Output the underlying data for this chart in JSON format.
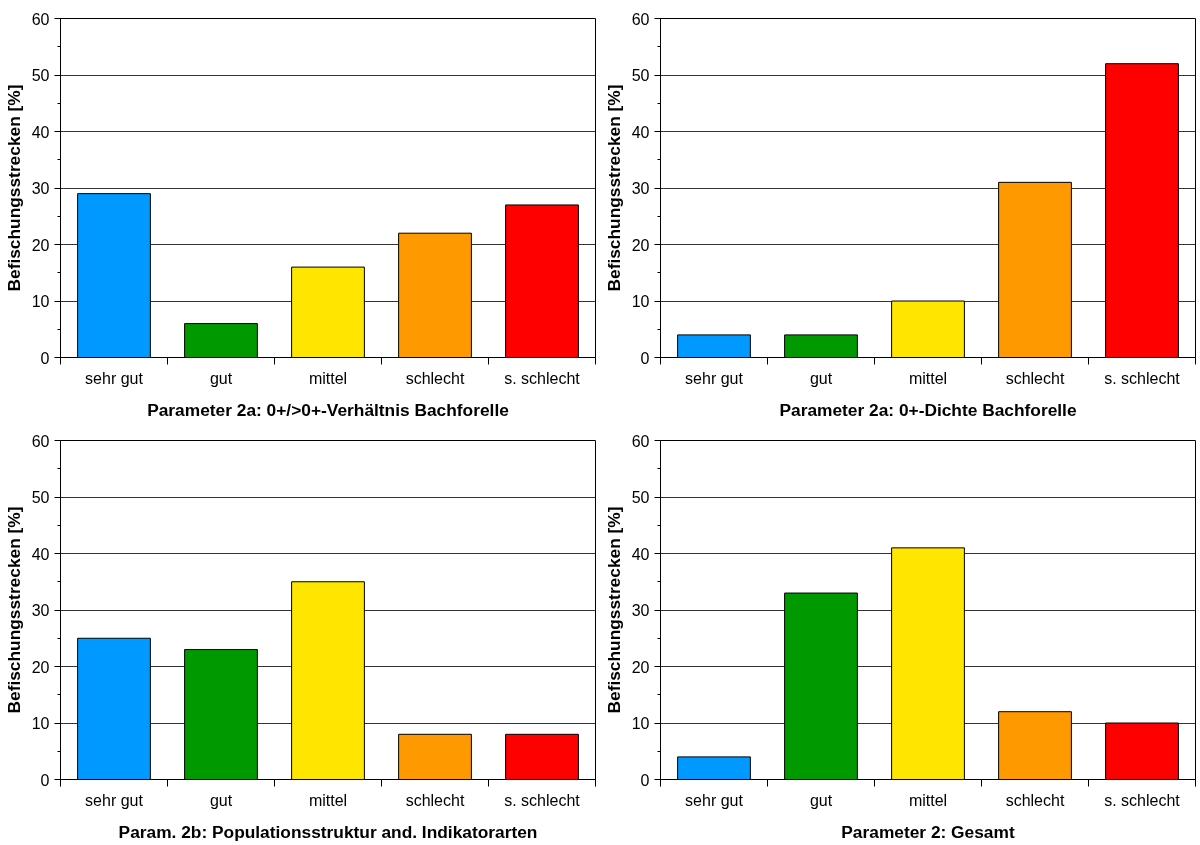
{
  "chart_data": [
    {
      "type": "bar",
      "xlabel": "Parameter 2a: 0+/>0+-Verhältnis Bachforelle",
      "ylabel": "Befischungsstrecken [%]",
      "categories": [
        "sehr gut",
        "gut",
        "mittel",
        "schlecht",
        "s. schlecht"
      ],
      "values": [
        29,
        6,
        16,
        22,
        27
      ],
      "colors": [
        "#0099ff",
        "#009900",
        "#ffe600",
        "#ff9900",
        "#ff0000"
      ],
      "ylim": [
        0,
        60
      ],
      "yticks": [
        0,
        10,
        20,
        30,
        40,
        50,
        60
      ],
      "grid": "y"
    },
    {
      "type": "bar",
      "xlabel": "Parameter 2a: 0+-Dichte Bachforelle",
      "ylabel": "Befischungsstrecken [%]",
      "categories": [
        "sehr gut",
        "gut",
        "mittel",
        "schlecht",
        "s. schlecht"
      ],
      "values": [
        4,
        4,
        10,
        31,
        52
      ],
      "colors": [
        "#0099ff",
        "#009900",
        "#ffe600",
        "#ff9900",
        "#ff0000"
      ],
      "ylim": [
        0,
        60
      ],
      "yticks": [
        0,
        10,
        20,
        30,
        40,
        50,
        60
      ],
      "grid": "y"
    },
    {
      "type": "bar",
      "xlabel": "Param. 2b: Populationsstruktur and. Indikatorarten",
      "ylabel": "Befischungsstrecken [%]",
      "categories": [
        "sehr gut",
        "gut",
        "mittel",
        "schlecht",
        "s. schlecht"
      ],
      "values": [
        25,
        23,
        35,
        8,
        8
      ],
      "colors": [
        "#0099ff",
        "#009900",
        "#ffe600",
        "#ff9900",
        "#ff0000"
      ],
      "ylim": [
        0,
        60
      ],
      "yticks": [
        0,
        10,
        20,
        30,
        40,
        50,
        60
      ],
      "grid": "y"
    },
    {
      "type": "bar",
      "xlabel": "Parameter 2: Gesamt",
      "ylabel": "Befischungsstrecken [%]",
      "categories": [
        "sehr gut",
        "gut",
        "mittel",
        "schlecht",
        "s. schlecht"
      ],
      "values": [
        4,
        33,
        41,
        12,
        10
      ],
      "colors": [
        "#0099ff",
        "#009900",
        "#ffe600",
        "#ff9900",
        "#ff0000"
      ],
      "ylim": [
        0,
        60
      ],
      "yticks": [
        0,
        10,
        20,
        30,
        40,
        50,
        60
      ],
      "grid": "y"
    }
  ]
}
